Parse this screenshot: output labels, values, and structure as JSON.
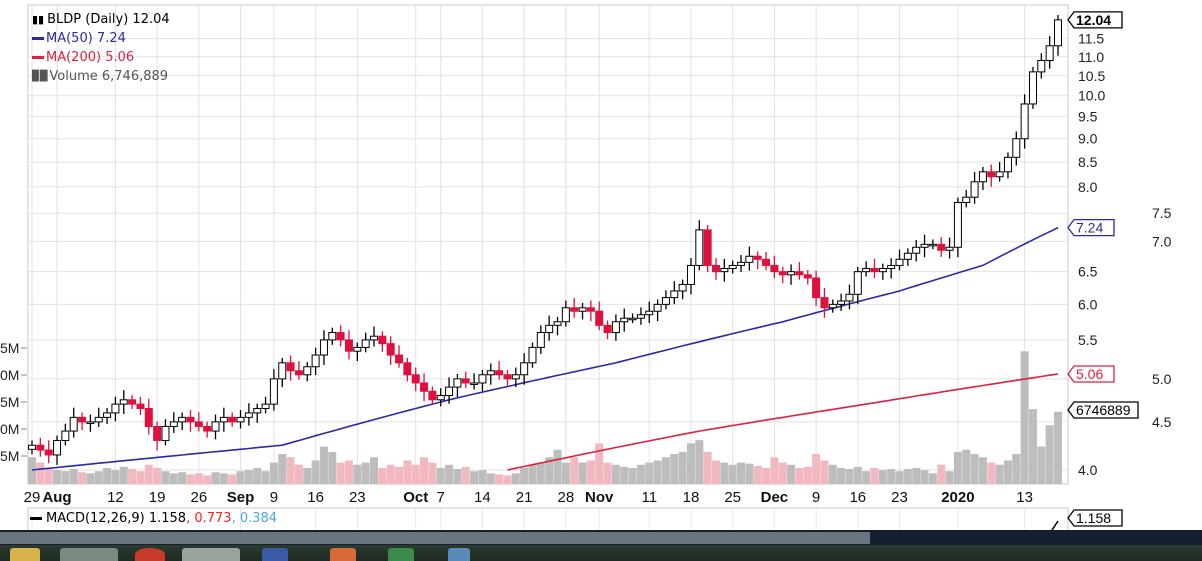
{
  "legend": {
    "title": "BLDP (Daily) 12.04",
    "ma50": "MA(50) 7.24",
    "ma200": "MA(200) 5.06",
    "volume": "Volume 6,746,889"
  },
  "macd": {
    "label": "MACD(12,26,9) 1.158",
    "signal": ", 0.773",
    "hist": ", 0.384",
    "tag": "1.158"
  },
  "colors": {
    "up": "#ffffff",
    "down": "#e0103c",
    "ma50": "#2a2aa8",
    "ma200": "#e02040",
    "vol_up": "#bdbdbd",
    "vol_down": "#f2b8c0",
    "macd_signal": "#ff2020",
    "macd_hist": "#4aa8e0"
  },
  "tags": {
    "last": "12.04",
    "ma50": "7.24",
    "ma200": "5.06",
    "volume": "6746889"
  },
  "chart_data": {
    "type": "candlestick",
    "title": "BLDP (Daily) 12.04",
    "scale": "log",
    "ylim": [
      4.0,
      12.04
    ],
    "y_ticks": [
      "11.5",
      "11.0",
      "10.5",
      "10.0",
      "9.5",
      "9.0",
      "8.5",
      "8.0",
      "7.5",
      "7.0",
      "6.5",
      "6.0",
      "5.5",
      "5.0",
      "4.5",
      "4.0"
    ],
    "volume_ticks": [
      "5M",
      "0M",
      "5M",
      "0M",
      "5M"
    ],
    "x_labels": [
      {
        "text": "29",
        "idx": 0,
        "bold": false
      },
      {
        "text": "Aug",
        "idx": 3,
        "bold": true
      },
      {
        "text": "12",
        "idx": 10,
        "bold": false
      },
      {
        "text": "19",
        "idx": 15,
        "bold": false
      },
      {
        "text": "26",
        "idx": 20,
        "bold": false
      },
      {
        "text": "Sep",
        "idx": 25,
        "bold": true
      },
      {
        "text": "9",
        "idx": 29,
        "bold": false
      },
      {
        "text": "16",
        "idx": 34,
        "bold": false
      },
      {
        "text": "23",
        "idx": 39,
        "bold": false
      },
      {
        "text": "Oct",
        "idx": 46,
        "bold": true
      },
      {
        "text": "7",
        "idx": 49,
        "bold": false
      },
      {
        "text": "14",
        "idx": 54,
        "bold": false
      },
      {
        "text": "21",
        "idx": 59,
        "bold": false
      },
      {
        "text": "28",
        "idx": 64,
        "bold": false
      },
      {
        "text": "Nov",
        "idx": 68,
        "bold": true
      },
      {
        "text": "11",
        "idx": 74,
        "bold": false
      },
      {
        "text": "18",
        "idx": 79,
        "bold": false
      },
      {
        "text": "25",
        "idx": 84,
        "bold": false
      },
      {
        "text": "Dec",
        "idx": 89,
        "bold": true
      },
      {
        "text": "9",
        "idx": 94,
        "bold": false
      },
      {
        "text": "16",
        "idx": 99,
        "bold": false
      },
      {
        "text": "23",
        "idx": 104,
        "bold": false
      },
      {
        "text": "2020",
        "idx": 111,
        "bold": true
      },
      {
        "text": "13",
        "idx": 119,
        "bold": false
      }
    ],
    "close": [
      4.25,
      4.2,
      4.15,
      4.3,
      4.4,
      4.55,
      4.5,
      4.5,
      4.55,
      4.6,
      4.7,
      4.75,
      4.7,
      4.65,
      4.45,
      4.3,
      4.45,
      4.5,
      4.55,
      4.5,
      4.45,
      4.4,
      4.5,
      4.55,
      4.5,
      4.55,
      4.6,
      4.65,
      4.7,
      5.0,
      5.2,
      5.1,
      5.05,
      5.15,
      5.3,
      5.5,
      5.6,
      5.5,
      5.35,
      5.4,
      5.5,
      5.55,
      5.45,
      5.3,
      5.2,
      5.05,
      4.95,
      4.85,
      4.75,
      4.8,
      4.9,
      5.0,
      4.95,
      4.95,
      5.05,
      5.1,
      5.05,
      5.0,
      5.05,
      5.2,
      5.4,
      5.6,
      5.7,
      5.75,
      5.95,
      5.9,
      5.95,
      5.9,
      5.7,
      5.6,
      5.75,
      5.8,
      5.8,
      5.85,
      5.9,
      6.0,
      6.1,
      6.2,
      6.3,
      6.6,
      7.2,
      6.6,
      6.5,
      6.55,
      6.6,
      6.65,
      6.75,
      6.7,
      6.6,
      6.5,
      6.45,
      6.5,
      6.45,
      6.4,
      6.1,
      5.95,
      6.0,
      6.05,
      6.15,
      6.5,
      6.55,
      6.5,
      6.55,
      6.6,
      6.7,
      6.8,
      6.9,
      6.95,
      6.95,
      6.85,
      6.9,
      7.7,
      7.8,
      8.1,
      8.3,
      8.2,
      8.3,
      8.6,
      9.0,
      9.8,
      10.6,
      10.9,
      11.3,
      12.04
    ],
    "volume_millions": [
      2.5,
      2.0,
      1.5,
      1.3,
      1.2,
      1.4,
      1.1,
      1.0,
      1.2,
      1.5,
      1.3,
      1.6,
      1.4,
      1.2,
      1.8,
      1.5,
      1.2,
      1.0,
      1.1,
      0.9,
      1.0,
      0.8,
      1.1,
      1.0,
      0.9,
      1.2,
      1.3,
      1.5,
      1.2,
      2.0,
      2.8,
      2.5,
      1.8,
      1.5,
      2.2,
      3.5,
      3.0,
      2.0,
      2.2,
      1.8,
      2.0,
      2.5,
      1.5,
      1.8,
      1.6,
      2.2,
      1.8,
      2.5,
      2.0,
      1.5,
      1.8,
      1.4,
      1.6,
      1.2,
      1.3,
      1.0,
      0.9,
      0.8,
      1.0,
      1.5,
      1.8,
      2.0,
      2.5,
      3.2,
      2.0,
      2.5,
      2.0,
      2.2,
      3.8,
      2.0,
      1.8,
      1.6,
      1.5,
      1.8,
      2.0,
      2.2,
      2.5,
      2.8,
      3.0,
      3.8,
      4.1,
      3.0,
      2.2,
      2.0,
      1.8,
      2.0,
      1.9,
      1.7,
      1.5,
      2.5,
      2.0,
      1.8,
      1.5,
      1.6,
      2.8,
      2.2,
      1.8,
      1.5,
      1.4,
      1.6,
      1.2,
      1.5,
      1.3,
      1.4,
      1.2,
      1.4,
      1.5,
      1.3,
      1.0,
      1.8,
      1.2,
      3.0,
      3.2,
      2.8,
      2.5,
      2.0,
      1.8,
      2.2,
      2.8,
      12.4,
      7.0,
      3.5,
      5.5,
      6.75
    ],
    "ma50_points": [
      [
        0,
        4.0
      ],
      [
        30,
        4.25
      ],
      [
        50,
        4.75
      ],
      [
        70,
        5.2
      ],
      [
        90,
        5.75
      ],
      [
        104,
        6.2
      ],
      [
        114,
        6.6
      ],
      [
        123,
        7.24
      ]
    ],
    "ma200_points": [
      [
        57,
        4.0
      ],
      [
        80,
        4.4
      ],
      [
        100,
        4.7
      ],
      [
        123,
        5.06
      ]
    ]
  }
}
